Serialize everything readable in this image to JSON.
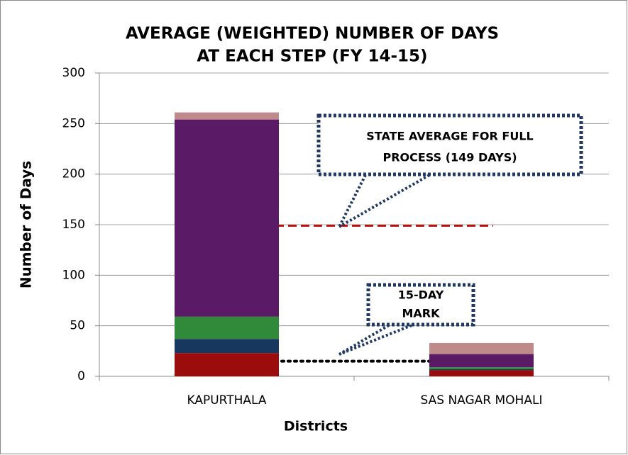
{
  "chart_data": {
    "type": "stacked_bar",
    "title": [
      "AVERAGE (WEIGHTED) NUMBER OF DAYS",
      "AT EACH STEP (FY 14-15)"
    ],
    "x_label": "Districts",
    "y_label": "Number of Days",
    "categories": [
      "KAPURTHALA",
      "SAS NAGAR MOHALI"
    ],
    "series": [
      {
        "color": "#9b0d0d",
        "values": [
          23,
          6
        ]
      },
      {
        "color": "#17375e",
        "values": [
          14,
          1
        ]
      },
      {
        "color": "#31893a",
        "values": [
          22,
          2
        ]
      },
      {
        "color": "#5a1a66",
        "values": [
          195,
          13
        ]
      },
      {
        "color": "#c08a8a",
        "values": [
          7,
          11
        ]
      }
    ],
    "ylim": [
      0,
      300
    ],
    "yticks": [
      0,
      50,
      100,
      150,
      200,
      250,
      300
    ],
    "grid": true,
    "reference_lines": [
      {
        "value": 149,
        "color": "#c00000",
        "style": "dashed"
      },
      {
        "value": 15,
        "color": "#000000",
        "style": "dotted"
      }
    ],
    "annotations": [
      {
        "lines": [
          "STATE AVERAGE FOR FULL",
          "PROCESS (149 DAYS)"
        ]
      },
      {
        "lines": [
          "15-DAY",
          "MARK"
        ]
      }
    ]
  }
}
